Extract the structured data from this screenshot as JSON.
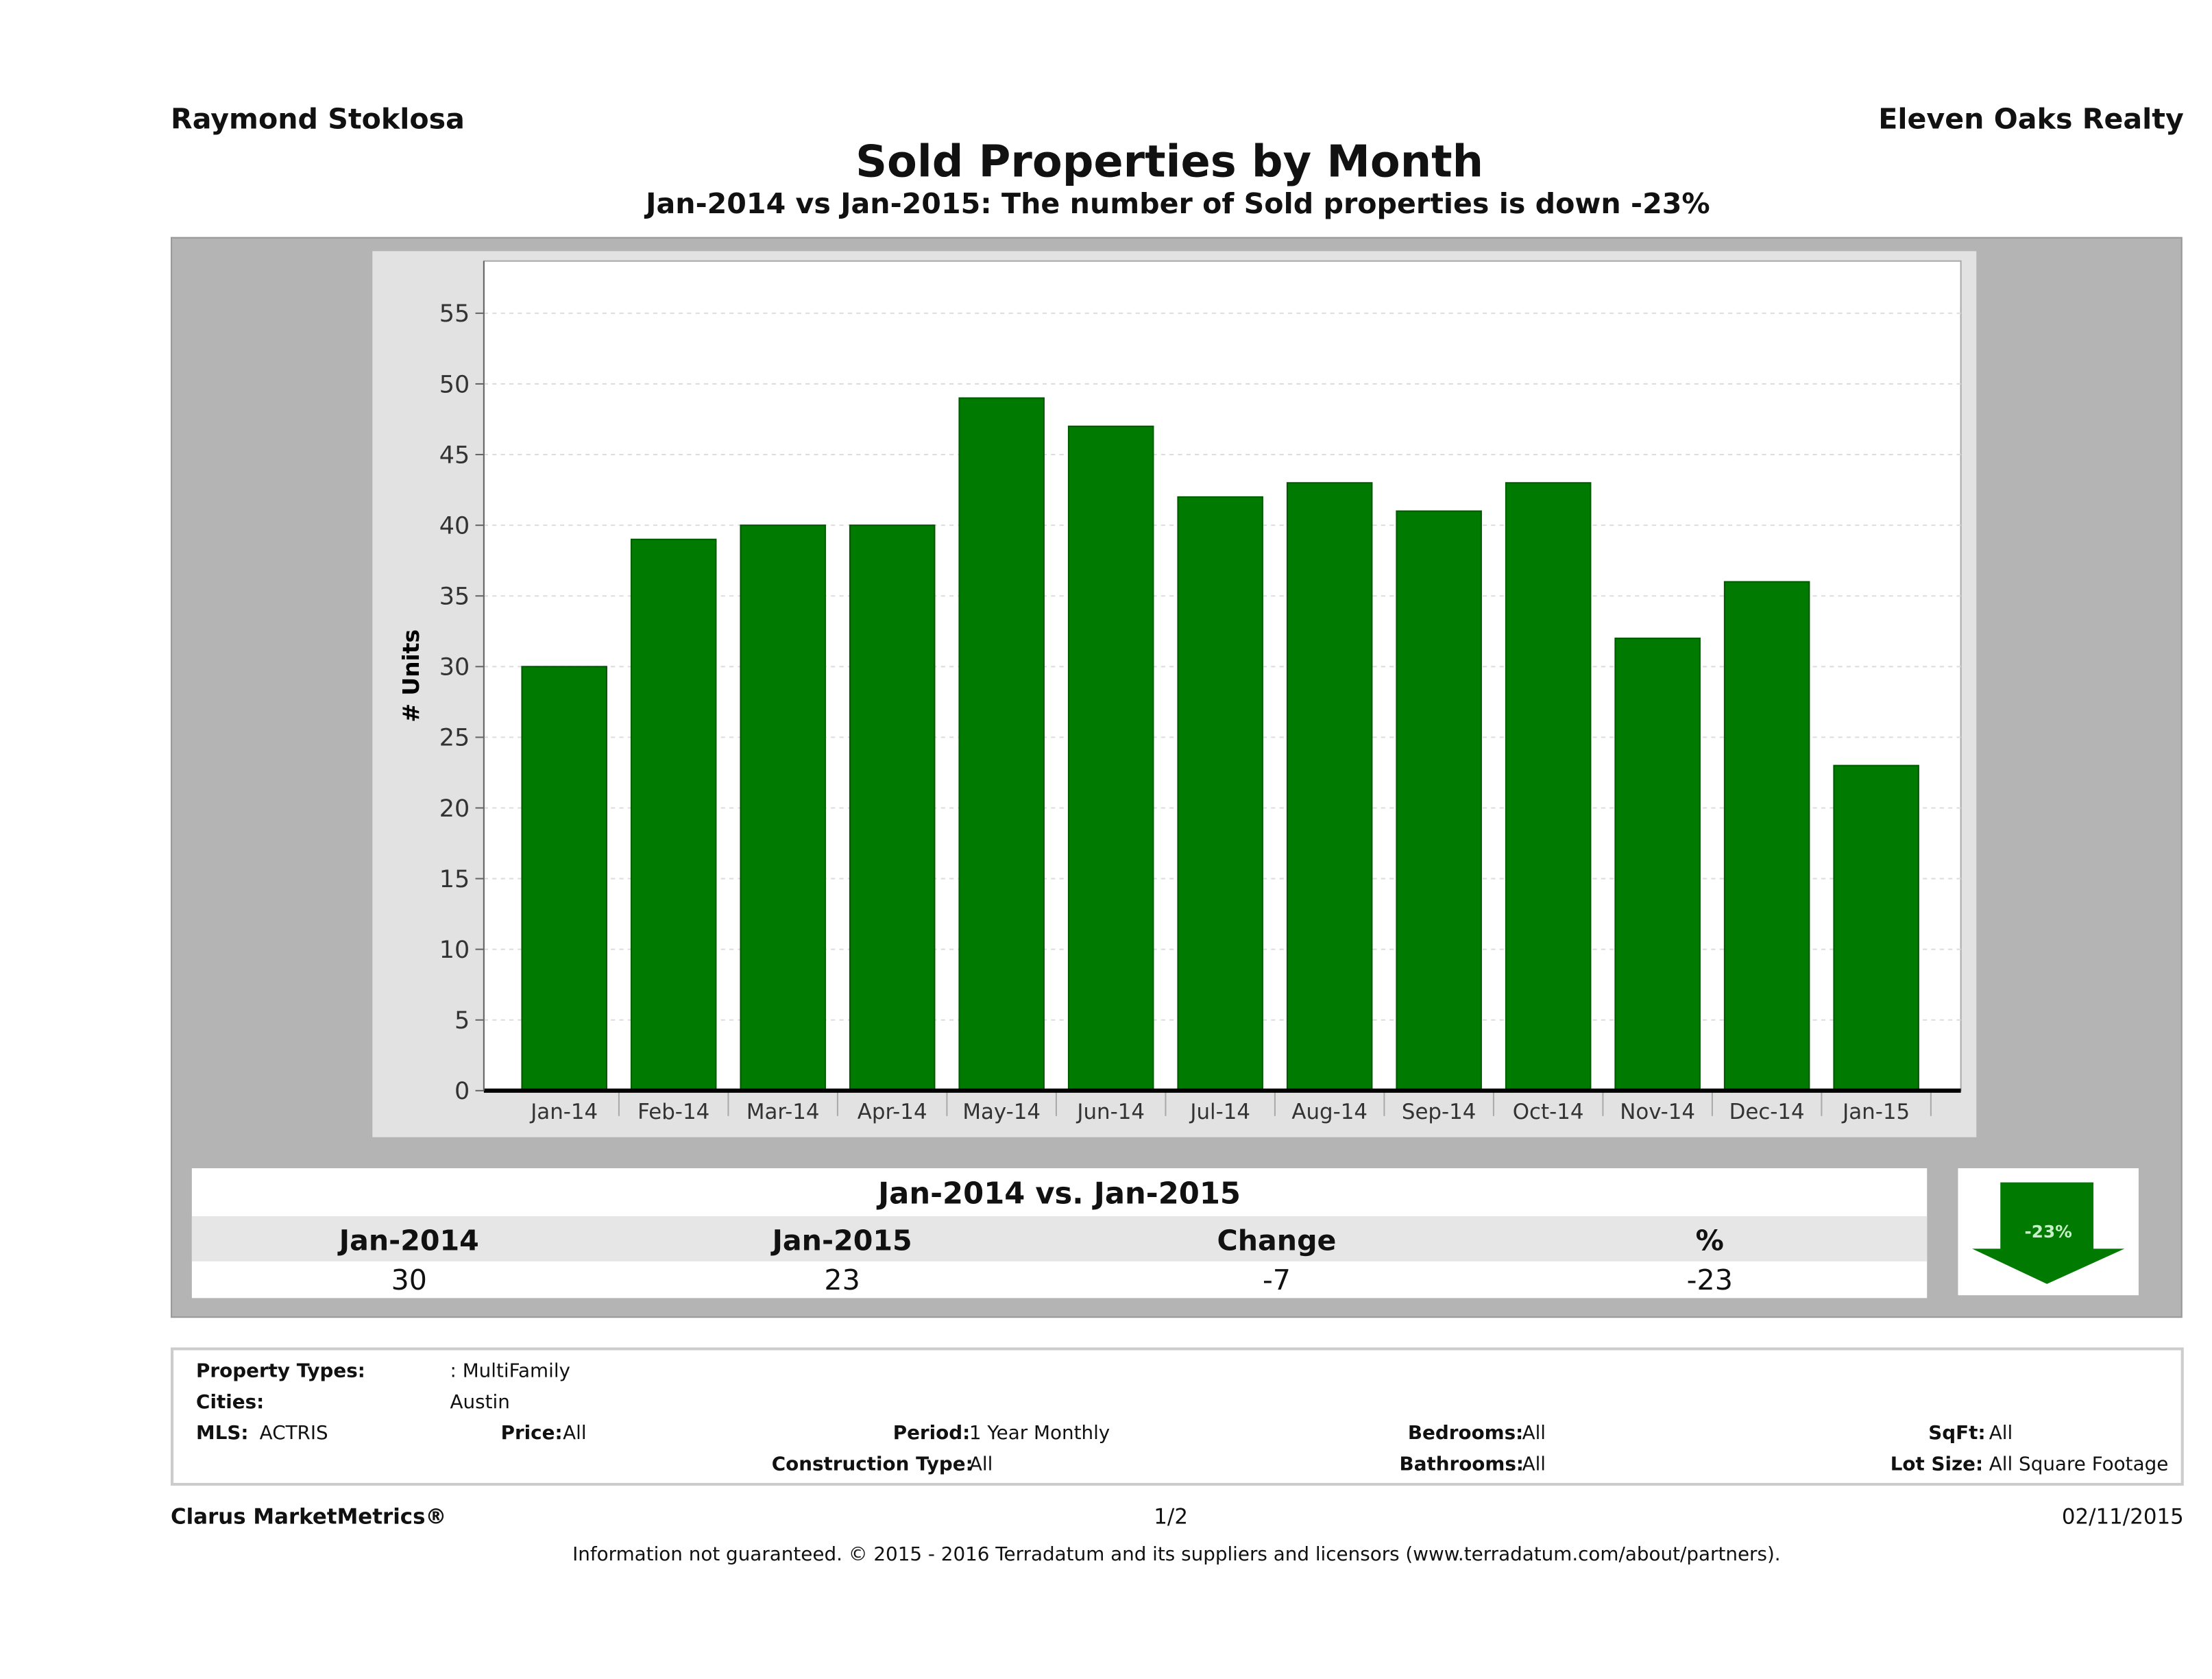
{
  "header": {
    "agent": "Raymond Stoklosa",
    "brokerage": "Eleven Oaks Realty"
  },
  "chart_data": {
    "type": "bar",
    "title": "Sold Properties by Month",
    "subtitle": "Jan-2014 vs Jan-2015: The number of Sold  properties is down -23%",
    "xlabel": "",
    "ylabel": "# Units",
    "categories": [
      "Jan-14",
      "Feb-14",
      "Mar-14",
      "Apr-14",
      "May-14",
      "Jun-14",
      "Jul-14",
      "Aug-14",
      "Sep-14",
      "Oct-14",
      "Nov-14",
      "Dec-14",
      "Jan-15"
    ],
    "values": [
      30,
      39,
      40,
      40,
      49,
      47,
      42,
      43,
      41,
      43,
      32,
      36,
      23
    ],
    "yticks": [
      0,
      5,
      10,
      15,
      20,
      25,
      30,
      35,
      40,
      45,
      50,
      55
    ],
    "ylim": [
      0,
      58
    ],
    "grid": true,
    "bar_color": "#007a00"
  },
  "comparison": {
    "title": "Jan-2014 vs. Jan-2015",
    "headers": [
      "Jan-2014",
      "Jan-2015",
      "Change",
      "%"
    ],
    "values": [
      "30",
      "23",
      "-7",
      "-23"
    ],
    "badge": "-23%",
    "badge_icon": "down-arrow-icon",
    "badge_color": "#007a00"
  },
  "filters": {
    "property_types_label": "Property Types:",
    "property_types": ": MultiFamily",
    "cities_label": "Cities:",
    "cities": "Austin",
    "mls_label": "MLS:",
    "mls": "ACTRIS",
    "price_label": "Price:",
    "price": "All",
    "period_label": "Period:",
    "period": "1 Year Monthly",
    "construction_label": "Construction Type:",
    "construction": "All",
    "bedrooms_label": "Bedrooms:",
    "bedrooms": "All",
    "bathrooms_label": "Bathrooms:",
    "bathrooms": "All",
    "sqft_label": "SqFt:",
    "sqft": "All",
    "lot_label": "Lot Size:",
    "lot": "All Square Footage"
  },
  "footer": {
    "brand": "Clarus MarketMetrics®",
    "page": "1/2",
    "date": "02/11/2015",
    "disclaimer": "Information not guaranteed. © 2015 - 2016 Terradatum and its suppliers and licensors (www.terradatum.com/about/partners)."
  }
}
